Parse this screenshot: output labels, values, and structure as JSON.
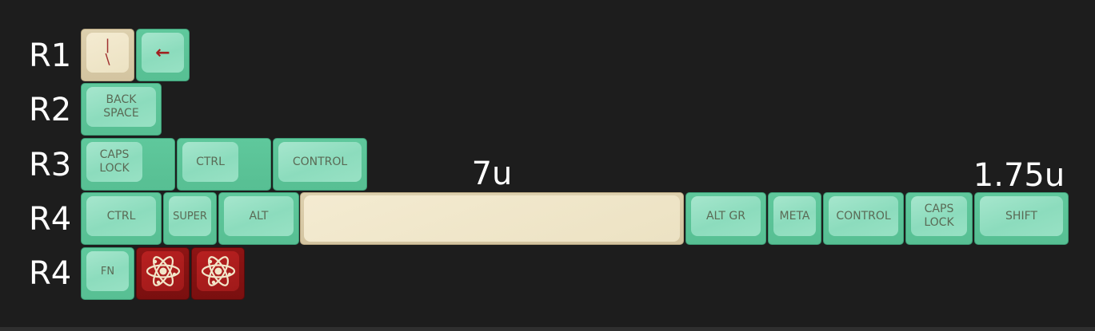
{
  "rows": [
    "R1",
    "R2",
    "R3",
    "R4",
    "R4"
  ],
  "size_labels": {
    "space": "7u",
    "shift": "1.75u"
  },
  "keys": {
    "r1_slash": "|\n\\",
    "r1_arrow": "←",
    "r2_backspace": "BACK\nSPACE",
    "r3_capslock": "CAPS\nLOCK",
    "r3_ctrl": "CTRL",
    "r3_control": "CONTROL",
    "r4_ctrl": "CTRL",
    "r4_super": "SUPER",
    "r4_alt": "ALT",
    "r4_altgr": "ALT GR",
    "r4_meta": "META",
    "r4_control": "CONTROL",
    "r4_capslock": "CAPS\nLOCK",
    "r4_shift": "SHIFT",
    "r5_fn": "FN"
  },
  "colors": {
    "mint": "#8cdcbd",
    "cream": "#ece2c3",
    "red": "#a01a1a",
    "legend": "#5a6a55"
  },
  "icons": {
    "atom": "atom-icon"
  }
}
